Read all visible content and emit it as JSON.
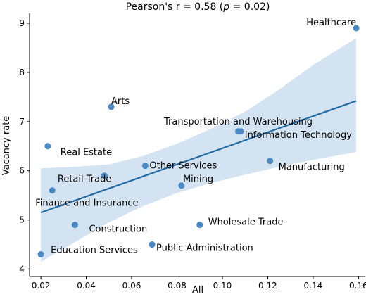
{
  "chart_data": {
    "type": "scatter",
    "title_prefix": "Pearson's r = 0.58 (",
    "title_p": "p",
    "title_suffix": " = 0.02)",
    "xlabel": "All",
    "ylabel": "Vacancy rate",
    "xlim": [
      0.015,
      0.163
    ],
    "ylim": [
      3.85,
      9.2
    ],
    "xticks": [
      0.02,
      0.04,
      0.06,
      0.08,
      0.1,
      0.12,
      0.14,
      0.16
    ],
    "xtick_labels": [
      "0.02",
      "0.04",
      "0.06",
      "0.08",
      "0.10",
      "0.12",
      "0.14",
      "0.16"
    ],
    "yticks": [
      4,
      5,
      6,
      7,
      8,
      9
    ],
    "ytick_labels": [
      "4",
      "5",
      "6",
      "7",
      "8",
      "9"
    ],
    "point_color": "#4a89c4",
    "line_color": "#1f6aa5",
    "band_color": "#d3e3f2",
    "points": [
      {
        "label": "Healthcare",
        "x": 0.159,
        "y": 8.9,
        "anchor": "end",
        "dx": 0,
        "dy": -8
      },
      {
        "label": "Arts",
        "x": 0.051,
        "y": 7.3,
        "anchor": "start",
        "dx": 0,
        "dy": -8
      },
      {
        "label": "Transportation and Warehousing",
        "x": 0.107,
        "y": 6.8,
        "anchor": "middle",
        "dx": 0,
        "dy": -14
      },
      {
        "label": "Information Technology",
        "x": 0.108,
        "y": 6.8,
        "anchor": "start",
        "dx": 6,
        "dy": 5
      },
      {
        "label": "Real Estate",
        "x": 0.023,
        "y": 6.5,
        "anchor": "start",
        "dx": 18,
        "dy": 9
      },
      {
        "label": "Manufacturing",
        "x": 0.121,
        "y": 6.2,
        "anchor": "start",
        "dx": 12,
        "dy": 9
      },
      {
        "label": "Other Services",
        "x": 0.066,
        "y": 6.1,
        "anchor": "start",
        "dx": 6,
        "dy": 0
      },
      {
        "label": "Retail Trade",
        "x": 0.048,
        "y": 5.9,
        "anchor": "end",
        "dx": 10,
        "dy": 5
      },
      {
        "label": "Mining",
        "x": 0.082,
        "y": 5.7,
        "anchor": "start",
        "dx": 2,
        "dy": -9
      },
      {
        "label": "Finance and Insurance",
        "x": 0.025,
        "y": 5.6,
        "anchor": "start",
        "dx": -24,
        "dy": 18
      },
      {
        "label": "Wholesale Trade",
        "x": 0.09,
        "y": 4.9,
        "anchor": "start",
        "dx": 12,
        "dy": -4
      },
      {
        "label": "Construction",
        "x": 0.035,
        "y": 4.9,
        "anchor": "start",
        "dx": 20,
        "dy": 6
      },
      {
        "label": "Public Administration",
        "x": 0.069,
        "y": 4.5,
        "anchor": "start",
        "dx": 6,
        "dy": 5
      },
      {
        "label": "Education Services",
        "x": 0.02,
        "y": 4.3,
        "anchor": "start",
        "dx": 14,
        "dy": -6
      }
    ],
    "regression_line": [
      {
        "x": 0.02,
        "y": 5.15
      },
      {
        "x": 0.159,
        "y": 7.42
      }
    ],
    "confidence_band": {
      "upper": [
        {
          "x": 0.02,
          "y": 6.05
        },
        {
          "x": 0.035,
          "y": 6.08
        },
        {
          "x": 0.05,
          "y": 6.13
        },
        {
          "x": 0.065,
          "y": 6.3
        },
        {
          "x": 0.08,
          "y": 6.55
        },
        {
          "x": 0.095,
          "y": 6.85
        },
        {
          "x": 0.11,
          "y": 7.2
        },
        {
          "x": 0.125,
          "y": 7.65
        },
        {
          "x": 0.14,
          "y": 8.15
        },
        {
          "x": 0.159,
          "y": 8.7
        }
      ],
      "lower": [
        {
          "x": 0.02,
          "y": 4.15
        },
        {
          "x": 0.035,
          "y": 4.55
        },
        {
          "x": 0.05,
          "y": 4.95
        },
        {
          "x": 0.065,
          "y": 5.28
        },
        {
          "x": 0.08,
          "y": 5.55
        },
        {
          "x": 0.095,
          "y": 5.75
        },
        {
          "x": 0.11,
          "y": 5.92
        },
        {
          "x": 0.125,
          "y": 6.08
        },
        {
          "x": 0.14,
          "y": 6.22
        },
        {
          "x": 0.159,
          "y": 6.38
        }
      ]
    },
    "grid": false,
    "legend": "none"
  }
}
